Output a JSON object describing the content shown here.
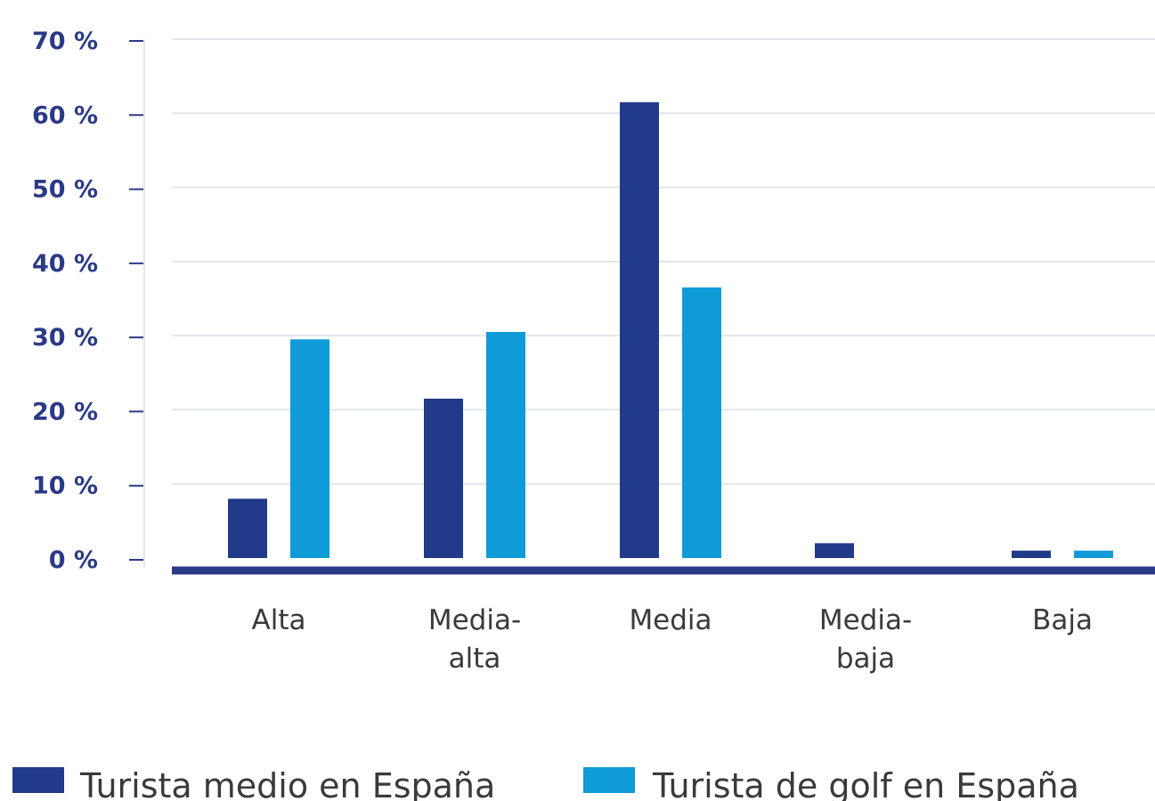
{
  "chart_data": {
    "type": "bar",
    "title": "",
    "xlabel": "",
    "ylabel": "",
    "ylim": [
      0,
      70
    ],
    "yticks": [
      "0 %",
      "10 %",
      "20 %",
      "30 %",
      "40 %",
      "50 %",
      "60 %",
      "70 %"
    ],
    "grid": true,
    "legend_position": "bottom",
    "categories": [
      [
        "Alta"
      ],
      [
        "Media-",
        "alta"
      ],
      [
        "Media"
      ],
      [
        "Media-",
        "baja"
      ],
      [
        "Baja"
      ]
    ],
    "series": [
      {
        "name": "Turista medio en España",
        "color": "#213a8a",
        "values": [
          8,
          21.5,
          61.5,
          2,
          1
        ]
      },
      {
        "name": "Turista de golf en España",
        "color": "#0f9bd8",
        "values": [
          29.5,
          30.5,
          36.5,
          0,
          1
        ]
      }
    ],
    "colors": {
      "axis": "#2b3a86",
      "grid": "#e3e5ea",
      "tick_text": "#2b3a86",
      "category_text": "#3a3a3a"
    }
  }
}
